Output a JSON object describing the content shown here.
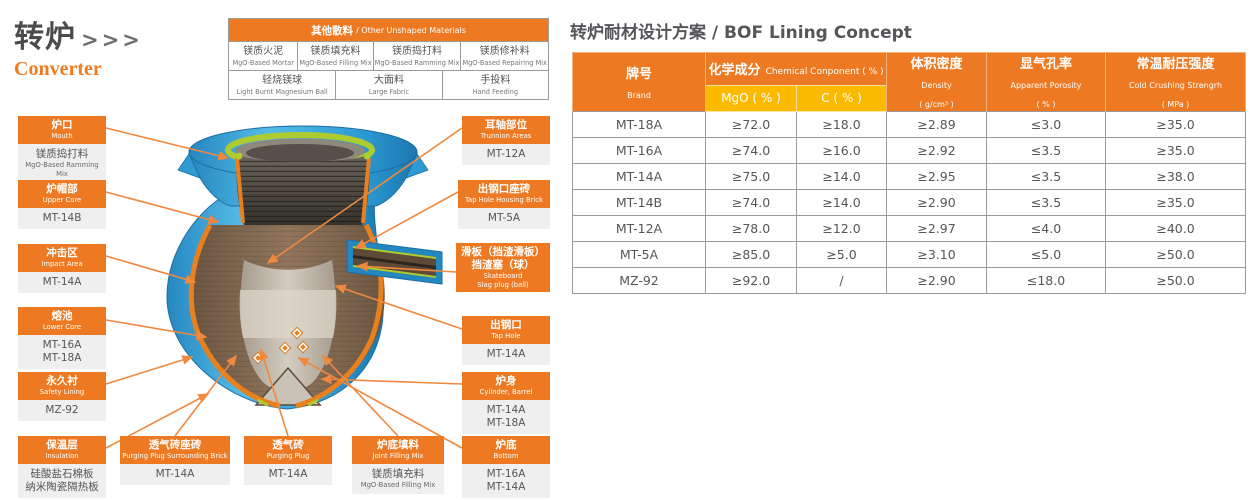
{
  "page": {
    "title_zh": "转炉",
    "title_arrows": ">>>",
    "title_en": "Converter"
  },
  "colors": {
    "accent_orange": "#ED7A22",
    "connector_orange": "#F0883E",
    "sub_header_yellow": "#FBB900",
    "text_gray": "#55565a",
    "label_value_bg": "#EFEFEF",
    "vessel_blue": "#2E9BD3",
    "vessel_rim_green": "#AECB2F",
    "vessel_brown": "#7D6450"
  },
  "materials_table": {
    "header_zh": "其他散料",
    "header_rest": "/ Other Unshaped Materials",
    "row1": [
      {
        "zh": "镁质火泥",
        "en": "MgO-Based Mortar"
      },
      {
        "zh": "镁质填充料",
        "en": "MgO-Based Filling Mix"
      },
      {
        "zh": "镁质捣打料",
        "en": "MgO-Based Ramming Mix"
      },
      {
        "zh": "镁质修补料",
        "en": "MgO-Based Repairing Mix"
      }
    ],
    "row2": [
      {
        "zh": "轻烧镁球",
        "en": "Light Burnt Magnesium Ball"
      },
      {
        "zh": "大面料",
        "en": "Large Fabric"
      },
      {
        "zh": "手投料",
        "en": "Hand Feeding"
      }
    ]
  },
  "lining_table": {
    "title": "转炉耐材设计方案 / BOF Lining Concept",
    "col_brand_zh": "牌号",
    "col_brand_en": "Brand",
    "col_chem_zh": "化学成分",
    "col_chem_en": "Chemical Conponent ( % )",
    "col_mgo": "MgO ( % )",
    "col_c": "C ( % )",
    "col_density_zh": "体积密度",
    "col_density_en": "Density",
    "col_density_unit": "( g/cm³ )",
    "col_porosity_zh": "显气孔率",
    "col_porosity_en": "Apparent Porosity",
    "col_porosity_unit": "( % )",
    "col_ccs_zh": "常温耐压强度",
    "col_ccs_en": "Cold Crushing Strengrh",
    "col_ccs_unit": "( MPa )",
    "rows": [
      [
        "MT-18A",
        "≥72.0",
        "≥18.0",
        "≥2.89",
        "≤3.0",
        "≥35.0"
      ],
      [
        "MT-16A",
        "≥74.0",
        "≥16.0",
        "≥2.92",
        "≤3.5",
        "≥35.0"
      ],
      [
        "MT-14A",
        "≥75.0",
        "≥14.0",
        "≥2.95",
        "≤3.5",
        "≥38.0"
      ],
      [
        "MT-14B",
        "≥74.0",
        "≥14.0",
        "≥2.90",
        "≤3.5",
        "≥35.0"
      ],
      [
        "MT-12A",
        "≥78.0",
        "≥12.0",
        "≥2.97",
        "≤4.0",
        "≥40.0"
      ],
      [
        "MT-5A",
        "≥85.0",
        "≥5.0",
        "≥3.10",
        "≤5.0",
        "≥50.0"
      ],
      [
        "MZ-92",
        "≥92.0",
        "/",
        "≥2.90",
        "≤18.0",
        "≥50.0"
      ]
    ]
  },
  "diagram": {
    "labels": {
      "mouth": {
        "zh": [
          "炉口"
        ],
        "en": [
          "Mouth"
        ],
        "val": [
          "镁质捣打料"
        ],
        "val_small": [
          "MgO-Based Ramming Mix"
        ]
      },
      "upper_core": {
        "zh": [
          "炉帽部"
        ],
        "en": [
          "Upper Core"
        ],
        "val": [
          "MT-14B"
        ],
        "val_small": []
      },
      "impact_area": {
        "zh": [
          "冲击区"
        ],
        "en": [
          "Impact Area"
        ],
        "val": [
          "MT-14A"
        ],
        "val_small": []
      },
      "lower_core": {
        "zh": [
          "熔池"
        ],
        "en": [
          "Lower Core"
        ],
        "val": [
          "MT-16A",
          "MT-18A"
        ],
        "val_small": []
      },
      "safety_lining": {
        "zh": [
          "永久衬"
        ],
        "en": [
          "Safety Lining"
        ],
        "val": [
          "MZ-92"
        ],
        "val_small": []
      },
      "insulation": {
        "zh": [
          "保温层"
        ],
        "en": [
          "Insulation"
        ],
        "val": [
          "硅酸盐石棉板",
          "纳米陶瓷隔热板"
        ],
        "val_small": []
      },
      "purging_plug_surrounding_brick": {
        "zh": [
          "透气砖座砖"
        ],
        "en": [
          "Purging Plug Surrounding Brick"
        ],
        "val": [
          "MT-14A"
        ],
        "val_small": []
      },
      "purging_plug": {
        "zh": [
          "透气砖"
        ],
        "en": [
          "Purging Plug"
        ],
        "val": [
          "MT-14A"
        ],
        "val_small": []
      },
      "joint_filling_mix": {
        "zh": [
          "炉底填料"
        ],
        "en": [
          "Joint Filling Mix"
        ],
        "val": [
          "镁质填充料"
        ],
        "val_small": [
          "MgO-Based Filling Mix"
        ]
      },
      "trunnion_areas": {
        "zh": [
          "耳轴部位"
        ],
        "en": [
          "Trunnion Areas"
        ],
        "val": [
          "MT-12A"
        ],
        "val_small": []
      },
      "tap_hole_housing_brick": {
        "zh": [
          "出钢口座砖"
        ],
        "en": [
          "Tap Hole Housing Brick"
        ],
        "val": [
          "MT-5A"
        ],
        "val_small": []
      },
      "skateboard": {
        "zh": [
          "滑板（挡渣滑板）",
          "挡渣塞（球）"
        ],
        "en": [
          "Skateboard",
          "Slag plug (ball)"
        ],
        "val": [],
        "val_small": []
      },
      "tap_hole": {
        "zh": [
          "出钢口"
        ],
        "en": [
          "Tap Hole"
        ],
        "val": [
          "MT-14A"
        ],
        "val_small": []
      },
      "cylinder_barrel": {
        "zh": [
          "炉身"
        ],
        "en": [
          "Cylinder, Barrel"
        ],
        "val": [
          "MT-14A",
          "MT-18A"
        ],
        "val_small": []
      },
      "bottom": {
        "zh": [
          "炉底"
        ],
        "en": [
          "Bottom"
        ],
        "val": [
          "MT-16A",
          "MT-14A"
        ],
        "val_small": []
      }
    }
  }
}
